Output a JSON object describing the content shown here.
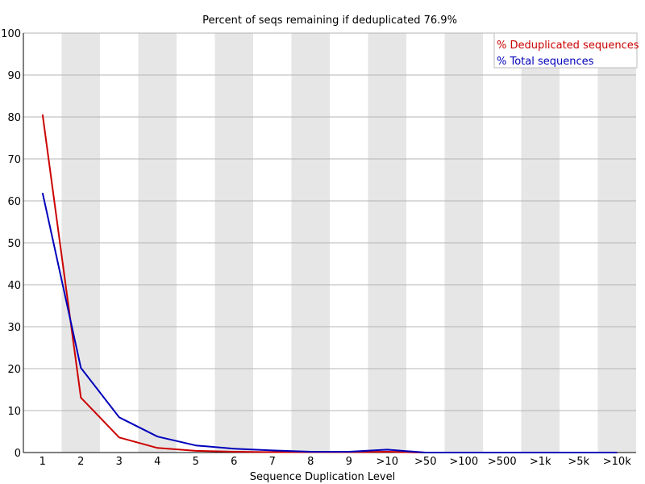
{
  "chart_data": {
    "type": "line",
    "title": "Percent of seqs remaining if deduplicated 76.9%",
    "xlabel": "Sequence Duplication Level",
    "ylabel": "",
    "ylim": [
      0,
      100
    ],
    "yticks": [
      "0",
      "10",
      "20",
      "30",
      "40",
      "50",
      "60",
      "70",
      "80",
      "90",
      "100"
    ],
    "categories": [
      "1",
      "2",
      "3",
      "4",
      "5",
      "6",
      "7",
      "8",
      "9",
      ">10",
      ">50",
      ">100",
      ">500",
      ">1k",
      ">5k",
      ">10k"
    ],
    "grid": true,
    "alternating_bands": true,
    "band_color": "#e6e6e6",
    "legend_position": "top-right",
    "series": [
      {
        "name": "% Deduplicated sequences",
        "color": "#cc0000",
        "values": [
          80.6,
          13.1,
          3.6,
          1.1,
          0.4,
          0.2,
          0.1,
          0.1,
          0.1,
          0.2,
          0.0,
          0.0,
          0.0,
          0.0,
          0.0,
          0.0
        ]
      },
      {
        "name": "% Total sequences",
        "color": "#0000bb",
        "values": [
          61.9,
          20.2,
          8.4,
          3.8,
          1.7,
          0.9,
          0.5,
          0.2,
          0.2,
          0.7,
          0.0,
          0.0,
          0.0,
          0.0,
          0.0,
          0.0
        ]
      }
    ]
  }
}
